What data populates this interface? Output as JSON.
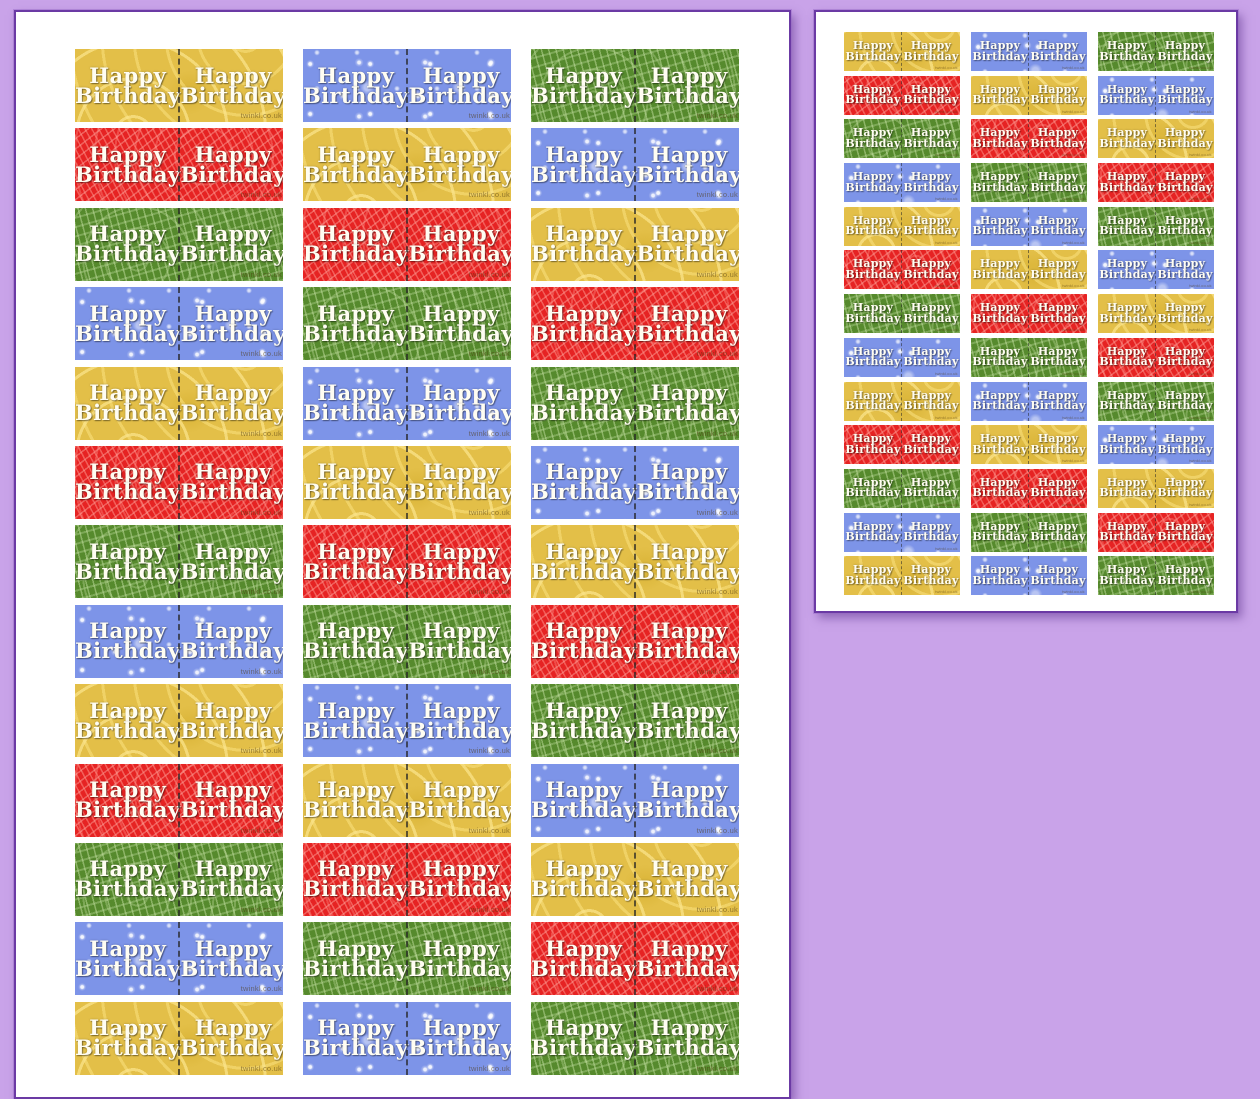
{
  "canvas": {
    "background": "#c9a3e9",
    "page_border": "#6b3aa4"
  },
  "label": {
    "line1": "Happy",
    "line2": "Birthday",
    "watermark": "twinkl.co.uk"
  },
  "colors": {
    "yellow": "#e3bf48",
    "red": "#e62323",
    "green": "#568a2d",
    "blue": "#7d94e8"
  },
  "sheet": {
    "columns": 3,
    "color_cycle": [
      "yellow",
      "red",
      "green",
      "blue"
    ],
    "rows": [
      [
        "yellow",
        "blue",
        "green"
      ],
      [
        "red",
        "yellow",
        "blue"
      ],
      [
        "green",
        "red",
        "yellow"
      ],
      [
        "blue",
        "green",
        "red"
      ],
      [
        "yellow",
        "blue",
        "green"
      ],
      [
        "red",
        "yellow",
        "blue"
      ],
      [
        "green",
        "red",
        "yellow"
      ],
      [
        "blue",
        "green",
        "red"
      ],
      [
        "yellow",
        "blue",
        "green"
      ],
      [
        "red",
        "yellow",
        "blue"
      ],
      [
        "green",
        "red",
        "yellow"
      ],
      [
        "blue",
        "green",
        "red"
      ],
      [
        "yellow",
        "blue",
        "green"
      ]
    ]
  },
  "pages": [
    {
      "name": "zoomed-sheet-left",
      "visible_rows": 8
    },
    {
      "name": "full-sheet-right",
      "visible_rows": 13
    }
  ]
}
